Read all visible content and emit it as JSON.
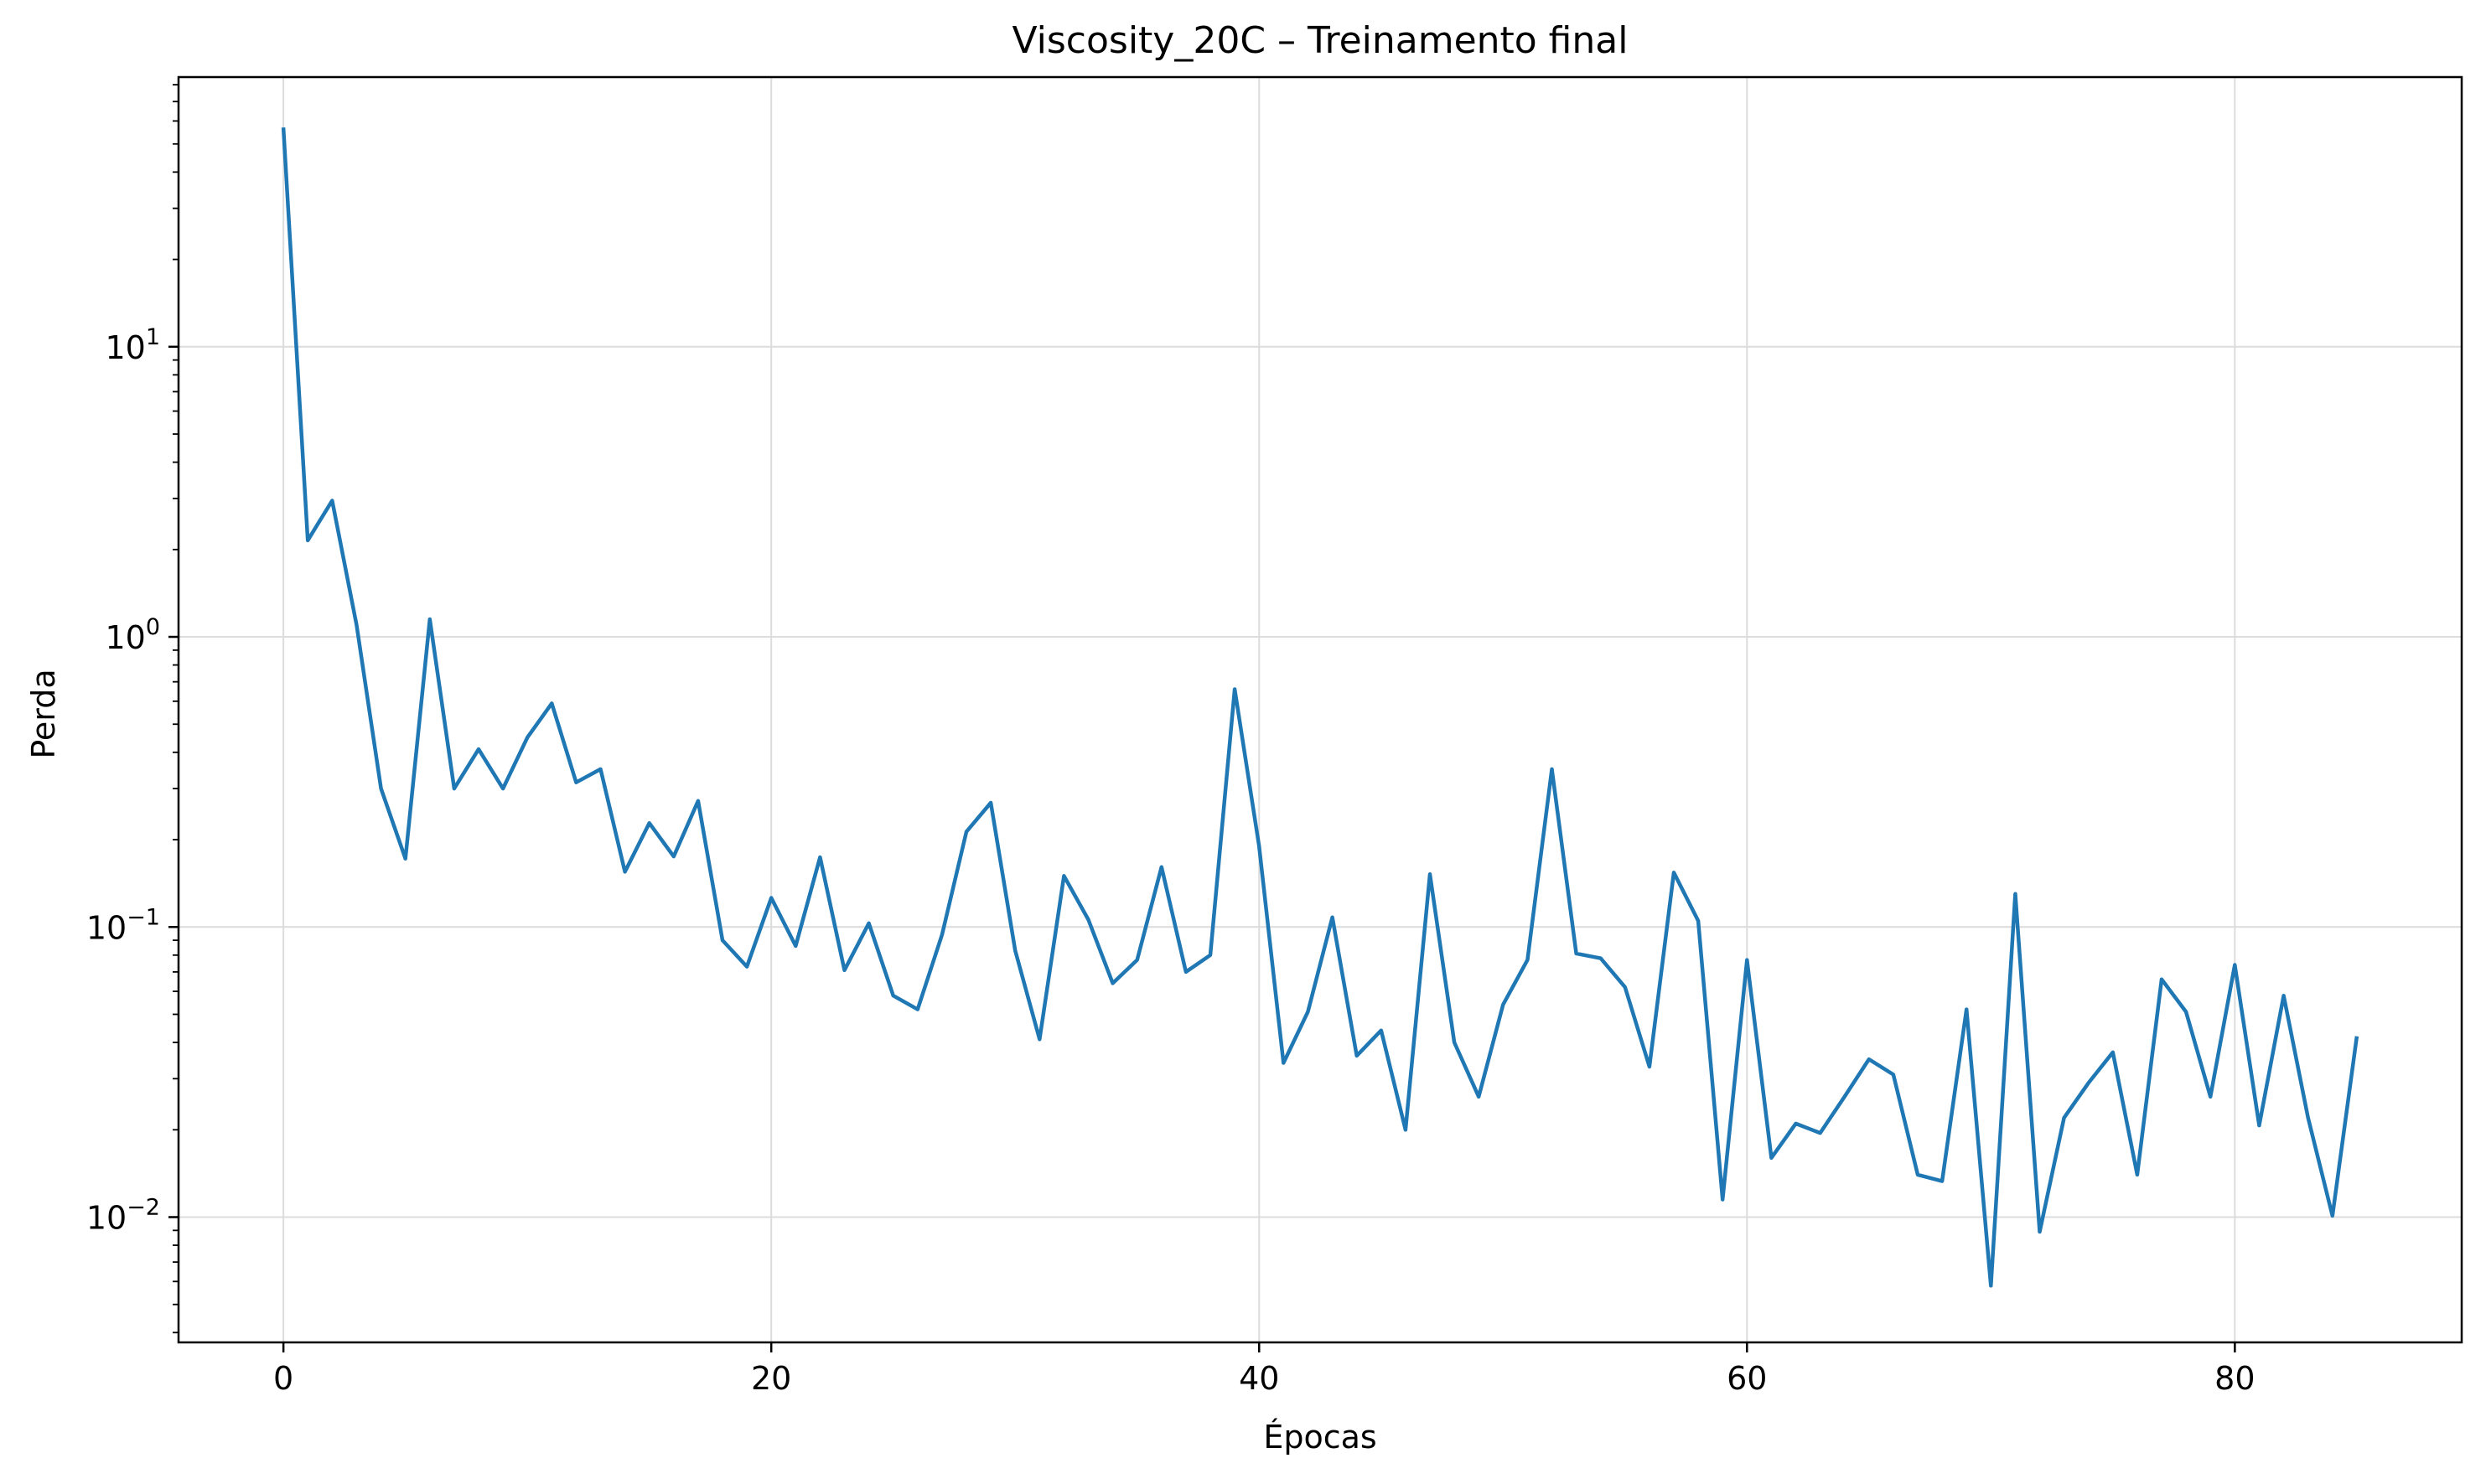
{
  "chart_data": {
    "type": "line",
    "title": "Viscosity_20C – Treinamento final",
    "xlabel": "Épocas",
    "ylabel": "Perda",
    "yscale": "log",
    "xlim": [
      -4.3,
      89.3
    ],
    "ylim": [
      0.0037,
      85
    ],
    "grid": true,
    "colors": {
      "line": "#1f77b4",
      "grid": "#dcdcdc",
      "axes": "#000000"
    },
    "x_ticks": [
      {
        "value": 0,
        "label": "0"
      },
      {
        "value": 20,
        "label": "20"
      },
      {
        "value": 40,
        "label": "40"
      },
      {
        "value": 60,
        "label": "60"
      },
      {
        "value": 80,
        "label": "80"
      }
    ],
    "y_ticks": [
      {
        "value": 0.01,
        "base": "10",
        "exp": "−2"
      },
      {
        "value": 0.1,
        "base": "10",
        "exp": "−1"
      },
      {
        "value": 1,
        "base": "10",
        "exp": "0"
      },
      {
        "value": 10,
        "base": "10",
        "exp": "1"
      }
    ],
    "series": [
      {
        "x": [
          0,
          1,
          2,
          3,
          4,
          5,
          6,
          7,
          8,
          9,
          10,
          11,
          12,
          13,
          14,
          15,
          16,
          17,
          18,
          19,
          20,
          21,
          22,
          23,
          24,
          25,
          26,
          27,
          28,
          29,
          30,
          31,
          32,
          33,
          34,
          35,
          36,
          37,
          38,
          39,
          40,
          41,
          42,
          43,
          44,
          45,
          46,
          47,
          48,
          49,
          50,
          51,
          52,
          53,
          54,
          55,
          56,
          57,
          58,
          59,
          60,
          61,
          62,
          63,
          64,
          65,
          66,
          67,
          68,
          69,
          70,
          71,
          72,
          73,
          74,
          75,
          76,
          77,
          78,
          79,
          80,
          81,
          82,
          83,
          84,
          85
        ],
        "values": [
          57,
          2.15,
          2.95,
          1.1,
          0.3,
          0.172,
          1.15,
          0.3,
          0.41,
          0.3,
          0.45,
          0.59,
          0.315,
          0.35,
          0.155,
          0.228,
          0.175,
          0.272,
          0.09,
          0.073,
          0.126,
          0.086,
          0.174,
          0.071,
          0.103,
          0.058,
          0.052,
          0.094,
          0.213,
          0.268,
          0.083,
          0.041,
          0.15,
          0.106,
          0.064,
          0.077,
          0.161,
          0.07,
          0.08,
          0.66,
          0.19,
          0.034,
          0.051,
          0.108,
          0.036,
          0.044,
          0.02,
          0.152,
          0.04,
          0.026,
          0.054,
          0.077,
          0.35,
          0.081,
          0.078,
          0.062,
          0.033,
          0.154,
          0.105,
          0.0115,
          0.077,
          0.016,
          0.021,
          0.0195,
          0.026,
          0.035,
          0.031,
          0.014,
          0.0133,
          0.052,
          0.0058,
          0.13,
          0.0089,
          0.022,
          0.029,
          0.037,
          0.014,
          0.066,
          0.051,
          0.026,
          0.074,
          0.0207,
          0.058,
          0.022,
          0.0101,
          0.042
        ]
      }
    ]
  }
}
